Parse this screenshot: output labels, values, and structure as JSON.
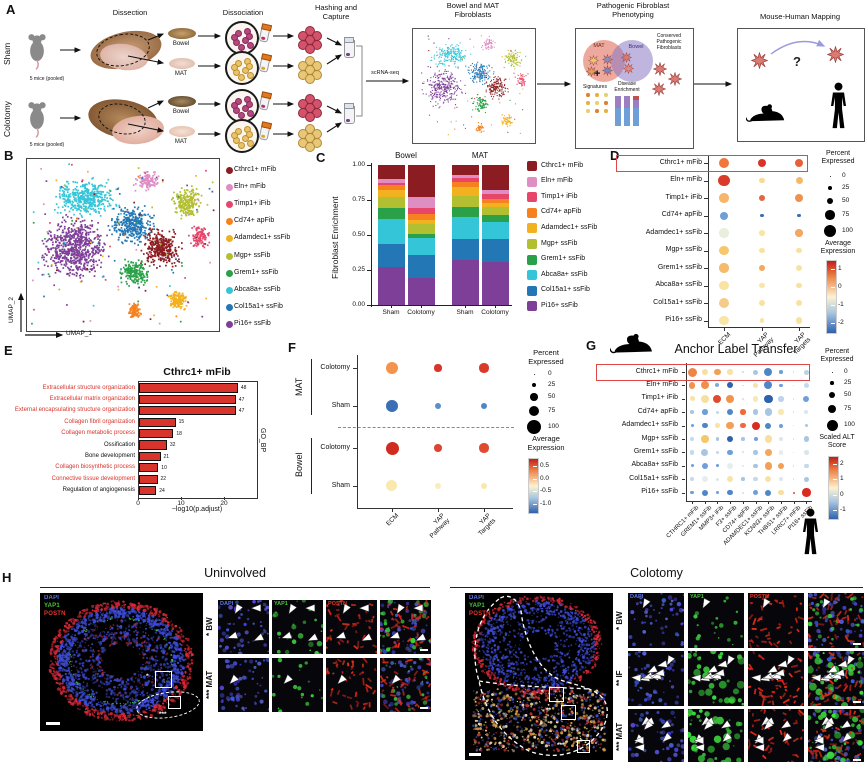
{
  "figure": {
    "A": "A",
    "B": "B",
    "C": "C",
    "D": "D",
    "E": "E",
    "F": "F",
    "G": "G",
    "H": "H"
  },
  "panelA": {
    "groups": [
      "Sham",
      "Colotomy"
    ],
    "pooled": "5 mice (pooled)",
    "dissection": "Dissection",
    "dissociation": "Dissociation",
    "hashing": "Hashing and\nCapture",
    "bowel": "Bowel",
    "mat": "MAT",
    "scrna": "scRNA-seq",
    "box1_title": "Bowel and MAT\nFibroblasts",
    "box2_title": "Pathogenic Fibroblast\nPhenotyping",
    "venn_left": "MAT",
    "venn_right": "Bowel",
    "plus": "+",
    "signatures": "Signatures",
    "disease": "Disease\nEnrichment",
    "conserved": "Conserved\nPathogenic\nFibroblasts",
    "box3_title": "Mouse-Human Mapping",
    "question": "?"
  },
  "clusters": [
    {
      "label": "Cthrc1+ mFib",
      "color": "#8b1d22"
    },
    {
      "label": "Eln+ mFib",
      "color": "#df8ec4"
    },
    {
      "label": "Timp1+ iFib",
      "color": "#e8456b"
    },
    {
      "label": "Cd74+ apFib",
      "color": "#f5821f"
    },
    {
      "label": "Adamdec1+ ssFib",
      "color": "#f2b11e"
    },
    {
      "label": "Mgp+ ssFib",
      "color": "#b2bf30"
    },
    {
      "label": "Grem1+ ssFib",
      "color": "#2aa048"
    },
    {
      "label": "Abca8a+ ssFib",
      "color": "#35c5d8"
    },
    {
      "label": "Col15a1+ ssFib",
      "color": "#2377b4"
    },
    {
      "label": "Pi16+ ssFib",
      "color": "#7d3f98"
    }
  ],
  "chart_data": [
    {
      "type": "scatter",
      "panel": "B",
      "xlabel": "UMAP_1",
      "ylabel": "UMAP_2",
      "clusters": [
        {
          "name": "Pi16+ ssFib",
          "color": "#7d3f98",
          "cx": 0.24,
          "cy": 0.52,
          "sx": 0.16,
          "sy": 0.17,
          "n": 650
        },
        {
          "name": "Abca8a+ ssFib",
          "color": "#35c5d8",
          "cx": 0.3,
          "cy": 0.22,
          "sx": 0.15,
          "sy": 0.1,
          "n": 430
        },
        {
          "name": "Col15a1+ ssFib",
          "color": "#2377b4",
          "cx": 0.55,
          "cy": 0.38,
          "sx": 0.1,
          "sy": 0.1,
          "n": 330
        },
        {
          "name": "Cthrc1+ mFib",
          "color": "#8b1d22",
          "cx": 0.7,
          "cy": 0.52,
          "sx": 0.09,
          "sy": 0.1,
          "n": 330
        },
        {
          "name": "Grem1+ ssFib",
          "color": "#2aa048",
          "cx": 0.56,
          "cy": 0.67,
          "sx": 0.07,
          "sy": 0.07,
          "n": 190
        },
        {
          "name": "Eln+ mFib",
          "color": "#df8ec4",
          "cx": 0.63,
          "cy": 0.12,
          "sx": 0.06,
          "sy": 0.05,
          "n": 120
        },
        {
          "name": "Mgp+ ssFib",
          "color": "#b2bf30",
          "cx": 0.84,
          "cy": 0.25,
          "sx": 0.07,
          "sy": 0.08,
          "n": 210
        },
        {
          "name": "Timp1+ iFib",
          "color": "#e8456b",
          "cx": 0.91,
          "cy": 0.45,
          "sx": 0.05,
          "sy": 0.06,
          "n": 110
        },
        {
          "name": "Adamdec1+ ssFib",
          "color": "#f2b11e",
          "cx": 0.79,
          "cy": 0.83,
          "sx": 0.05,
          "sy": 0.05,
          "n": 130
        },
        {
          "name": "Cd74+ apFib",
          "color": "#f5821f",
          "cx": 0.56,
          "cy": 0.89,
          "sx": 0.035,
          "sy": 0.045,
          "n": 90
        }
      ]
    },
    {
      "type": "bar",
      "stacked": true,
      "panel": "C",
      "ylabel": "Fibroblast Enrichment",
      "groups": [
        "Bowel",
        "MAT"
      ],
      "categories": [
        "Sham",
        "Colotomy"
      ],
      "yticks": [
        "1.00",
        "0.75",
        "0.50",
        "0.25",
        "0.00"
      ],
      "bars": [
        "Bowel Sham",
        "Bowel Colotomy",
        "MAT Sham",
        "MAT Colotomy"
      ],
      "series": [
        {
          "name": "Cthrc1+ mFib",
          "color": "#8b1d22",
          "values": [
            0.1,
            0.23,
            0.07,
            0.18
          ]
        },
        {
          "name": "Eln+ mFib",
          "color": "#df8ec4",
          "values": [
            0.03,
            0.08,
            0.025,
            0.03
          ]
        },
        {
          "name": "Timp1+ iFib",
          "color": "#e8456b",
          "values": [
            0.01,
            0.04,
            0.025,
            0.03
          ]
        },
        {
          "name": "Cd74+ apFib",
          "color": "#f5821f",
          "values": [
            0.04,
            0.04,
            0.04,
            0.03
          ]
        },
        {
          "name": "Adamdec1+ ssFib",
          "color": "#f2b11e",
          "values": [
            0.05,
            0.03,
            0.06,
            0.03
          ]
        },
        {
          "name": "Mgp+ ssFib",
          "color": "#b2bf30",
          "values": [
            0.08,
            0.07,
            0.08,
            0.06
          ]
        },
        {
          "name": "Grem1+ ssFib",
          "color": "#2aa048",
          "values": [
            0.075,
            0.03,
            0.07,
            0.05
          ]
        },
        {
          "name": "Abca8a+ ssFib",
          "color": "#35c5d8",
          "values": [
            0.18,
            0.12,
            0.16,
            0.12
          ]
        },
        {
          "name": "Col15a1+ ssFib",
          "color": "#2377b4",
          "values": [
            0.165,
            0.17,
            0.15,
            0.16
          ]
        },
        {
          "name": "Pi16+ ssFib",
          "color": "#7d3f98",
          "values": [
            0.27,
            0.19,
            0.32,
            0.31
          ]
        }
      ]
    },
    {
      "type": "dotplot",
      "panel": "D",
      "rows": [
        "Cthrc1+ mFib",
        "Eln+ mFib",
        "Timp1+ iFib",
        "Cd74+ apFib",
        "Adamdec1+ ssFib",
        "Mgp+ ssFib",
        "Grem1+ ssFib",
        "Abca8a+ ssFib",
        "Col15a1+ ssFib",
        "Pi16+ ssFib"
      ],
      "cols": [
        "ECM",
        "YAP Pathway",
        "YAP Targets"
      ],
      "highlight_row": "Cthrc1+ mFib",
      "size_pct": [
        [
          80,
          55,
          60
        ],
        [
          90,
          35,
          45
        ],
        [
          70,
          40,
          60
        ],
        [
          55,
          15,
          12
        ],
        [
          65,
          30,
          50
        ],
        [
          65,
          30,
          35
        ],
        [
          65,
          35,
          40
        ],
        [
          65,
          30,
          35
        ],
        [
          75,
          35,
          40
        ],
        [
          65,
          25,
          40
        ]
      ],
      "expr_color": [
        [
          "#f0763c",
          "#d93327",
          "#e8603a"
        ],
        [
          "#d93b2b",
          "#f9da8f",
          "#f5b866"
        ],
        [
          "#f6b568",
          "#e2673f",
          "#ee9150"
        ],
        [
          "#6f9fd8",
          "#3b6fb5",
          "#3b6fb5"
        ],
        [
          "#e9efdc",
          "#f9e5a3",
          "#f2a765"
        ],
        [
          "#f7c76d",
          "#f9e2a0",
          "#f9e2a0"
        ],
        [
          "#f5bc6d",
          "#f3a85e",
          "#f9e2a0"
        ],
        [
          "#f9e3a4",
          "#f9e5a8",
          "#f9e2a0"
        ],
        [
          "#f6ca88",
          "#f9e2a0",
          "#f9e2a0"
        ],
        [
          "#fae5a9",
          "#f9e5a8",
          "#f9e2a0"
        ]
      ],
      "legend": {
        "percent_title": "Percent\nExpressed",
        "percent_values": [
          "0",
          "25",
          "50",
          "75",
          "100"
        ],
        "expr_title": "Average\nExpression",
        "expr_ticks": [
          "1",
          "0",
          "-1",
          "-2"
        ]
      }
    },
    {
      "type": "bar",
      "panel": "E",
      "orientation": "horizontal",
      "title": "Cthrc1+ mFib",
      "xlabel": "−log10(p.adjust)",
      "right_label": "GO_BP",
      "xticks": [
        "0",
        "10",
        "20"
      ],
      "bar_color": "#d9342b",
      "terms": [
        {
          "label": "Extracellular structure organization",
          "value": 23,
          "count": "48",
          "red": true
        },
        {
          "label": "Extracellular matrix organization",
          "value": 22.5,
          "count": "47",
          "red": true
        },
        {
          "label": "External encapsulating structure organization",
          "value": 22.5,
          "count": "47",
          "red": true
        },
        {
          "label": "Collagen fibril organization",
          "value": 8.5,
          "count": "15",
          "red": true
        },
        {
          "label": "Collagen metabolic process",
          "value": 8,
          "count": "18",
          "red": true
        },
        {
          "label": "Ossification",
          "value": 6.5,
          "count": "32",
          "red": false
        },
        {
          "label": "Bone development",
          "value": 5,
          "count": "21",
          "red": false
        },
        {
          "label": "Collagen biosynthetic process",
          "value": 4.5,
          "count": "10",
          "red": true
        },
        {
          "label": "Connective tissue development",
          "value": 4.3,
          "count": "22",
          "red": true
        },
        {
          "label": "Regulation of angiogenesis",
          "value": 4,
          "count": "24",
          "red": false
        }
      ]
    },
    {
      "type": "dotplot",
      "panel": "F",
      "row_groups": [
        {
          "name": "MAT",
          "rows": [
            "Colotomy",
            "Sham"
          ]
        },
        {
          "name": "Bowel",
          "rows": [
            "Colotomy",
            "Sham"
          ]
        }
      ],
      "cols": [
        "ECM",
        "YAP Pathway",
        "YAP Targets"
      ],
      "size_pct": [
        [
          80,
          40,
          55
        ],
        [
          75,
          30,
          32
        ],
        [
          85,
          42,
          55
        ],
        [
          70,
          30,
          32
        ]
      ],
      "expr_color": [
        [
          "#f5934e",
          "#d9352b",
          "#da3a2a"
        ],
        [
          "#3b6fb5",
          "#5b8fc9",
          "#4f86c6"
        ],
        [
          "#cf2b20",
          "#dc4631",
          "#e04b30"
        ],
        [
          "#f9e9ac",
          "#f9edbb",
          "#f7e8ae"
        ]
      ],
      "legend": {
        "percent_title": "Percent\nExpressed",
        "percent_values": [
          "0",
          "25",
          "50",
          "75",
          "100"
        ],
        "expr_title": "Average\nExpression",
        "expr_ticks": [
          "0.5",
          "0.0",
          "-0.5",
          "-1.0"
        ]
      }
    },
    {
      "type": "dotplot",
      "panel": "G",
      "title": "Anchor Label Transfer",
      "rows": [
        "Cthrc1+ mFib",
        "Eln+ mFib",
        "Timp1+ iFib",
        "Cd74+ apFib",
        "Adamdec1+ ssFib",
        "Mgp+ ssFib",
        "Grem1+ ssFib",
        "Abca8a+ ssFib",
        "Col15a1+ ssFib",
        "Pi16+ ssFib"
      ],
      "cols": [
        "CTHRC1+ mFib",
        "GREM1+ ssFib",
        "MMP3+ iFib",
        "F3+ ssFib",
        "CD74+ apFib",
        "ADAMDEC1+ ssFib",
        "KCNN3+ ssFib",
        "THBS1+ ssFib",
        "LRRC7+ mFib",
        "PI16+ ssFib"
      ],
      "highlight_row": "Cthrc1+ mFib",
      "species_rows": "mouse",
      "species_cols": "human",
      "size_pct": [
        [
          80,
          55,
          55,
          45,
          10,
          40,
          70,
          25,
          8,
          40
        ],
        [
          55,
          70,
          30,
          50,
          8,
          40,
          70,
          25,
          8,
          45
        ],
        [
          40,
          70,
          70,
          70,
          10,
          45,
          75,
          45,
          8,
          50
        ],
        [
          25,
          45,
          20,
          55,
          45,
          45,
          65,
          45,
          8,
          30
        ],
        [
          20,
          45,
          35,
          65,
          45,
          70,
          50,
          30,
          8,
          25
        ],
        [
          35,
          65,
          25,
          55,
          25,
          30,
          65,
          30,
          8,
          45
        ],
        [
          35,
          60,
          25,
          45,
          10,
          35,
          55,
          35,
          8,
          35
        ],
        [
          20,
          50,
          18,
          55,
          12,
          35,
          65,
          50,
          8,
          35
        ],
        [
          30,
          55,
          20,
          50,
          25,
          35,
          50,
          30,
          8,
          40
        ],
        [
          22,
          50,
          20,
          45,
          10,
          40,
          50,
          45,
          12,
          75
        ]
      ],
      "alt_color": [
        [
          "#ef8448",
          "#f7dfa0",
          "#f2a057",
          "#f7e3a6",
          "#cfd8dd",
          "#a8c6e2",
          "#4f86c6",
          "#6f9fd8",
          "#d9dde0",
          "#b9d2e8"
        ],
        [
          "#f0934f",
          "#f08f4a",
          "#7fa8d4",
          "#2f62ac",
          "#d9dde0",
          "#f7e3a6",
          "#4f86c6",
          "#6f9fd8",
          "#d9dde0",
          "#c3d9ec"
        ],
        [
          "#f7e3a6",
          "#f7dfa0",
          "#e04b30",
          "#f0934f",
          "#d9dde0",
          "#f7e8b4",
          "#2f62ac",
          "#bcd5ea",
          "#d9dde0",
          "#6f9fd8"
        ],
        [
          "#a8c6e2",
          "#6f9fd8",
          "#c3d9ec",
          "#4f86c6",
          "#ef6a3a",
          "#a8c6e2",
          "#a8c6e2",
          "#f7e8b4",
          "#d9dde0",
          "#dce6ea"
        ],
        [
          "#6f9fd8",
          "#4f86c6",
          "#f7e3a6",
          "#f2a057",
          "#ef6a3a",
          "#d92b1f",
          "#4f86c6",
          "#6f9fd8",
          "#d9dde0",
          "#a8c6e2"
        ],
        [
          "#c3d9ec",
          "#f5c76d",
          "#a8c6e2",
          "#2f62ac",
          "#a8c6e2",
          "#6f9fd8",
          "#f7dfa0",
          "#dce6ea",
          "#d9dde0",
          "#a8c6e2"
        ],
        [
          "#c3d9ec",
          "#a8c6e2",
          "#c3d9ec",
          "#6f9fd8",
          "#d9dde0",
          "#a8c6e2",
          "#f2a860",
          "#e7ecef",
          "#d9dde0",
          "#dce6ea"
        ],
        [
          "#6f9fd8",
          "#6f9fd8",
          "#6f9fd8",
          "#e7ecef",
          "#dce6ea",
          "#a8c6e2",
          "#f0a057",
          "#f0a057",
          "#d9dde0",
          "#c3d9ec"
        ],
        [
          "#c3d9ec",
          "#e7ecef",
          "#dce6ea",
          "#f7e3a6",
          "#a8c6e2",
          "#c3d9ec",
          "#f7e3a6",
          "#dce6ea",
          "#d9dde0",
          "#a8c6e2"
        ],
        [
          "#6f9fd8",
          "#4f86c6",
          "#6f9fd8",
          "#4f86c6",
          "#d9dde0",
          "#6f9fd8",
          "#4f86c6",
          "#f7dfa0",
          "#e04b30",
          "#d92b1f"
        ]
      ],
      "legend": {
        "percent_title": "Percent\nExpressed",
        "percent_values": [
          "0",
          "25",
          "50",
          "75",
          "100"
        ],
        "alt_title": "Scaled ALT\nScore",
        "alt_ticks": [
          "2",
          "1",
          "0",
          "-1"
        ]
      }
    }
  ],
  "panelH": {
    "uninvolved": {
      "title": "Uninvolved",
      "rows": [
        {
          "label": "BW",
          "stars": "*",
          "arrows": 4
        },
        {
          "label": "MAT",
          "stars": "***",
          "arrows": 1
        }
      ],
      "main_stars": [
        "*",
        "***"
      ]
    },
    "colotomy": {
      "title": "Colotomy",
      "rows": [
        {
          "label": "BW",
          "stars": "*",
          "arrows": 1
        },
        {
          "label": "IF",
          "stars": "**",
          "arrows": 9
        },
        {
          "label": "MAT",
          "stars": "***",
          "arrows": 8
        }
      ],
      "main_stars": [
        "*",
        "**",
        "***"
      ]
    },
    "channels": [
      {
        "name": "DAPI",
        "color": "#5a76e8"
      },
      {
        "name": "YAP1",
        "color": "#49c53b"
      },
      {
        "name": "POSTN",
        "color": "#e8352b"
      }
    ]
  }
}
